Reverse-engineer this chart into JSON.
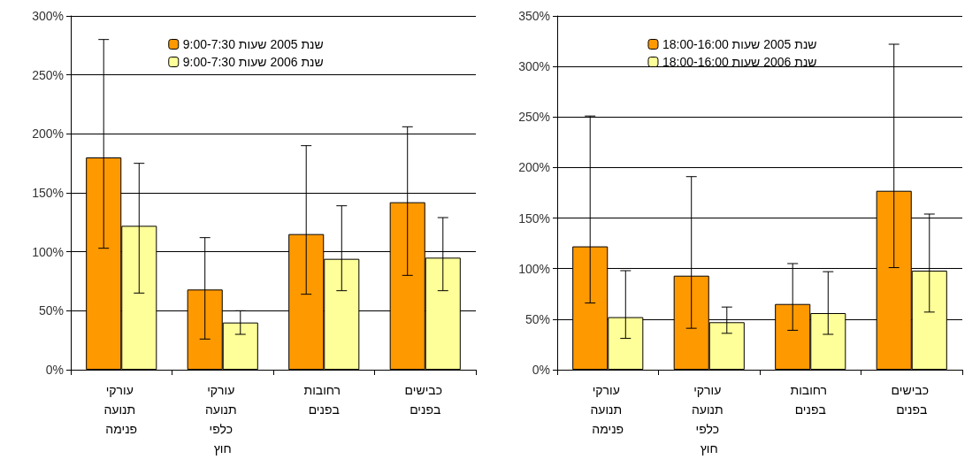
{
  "chart_data": [
    {
      "type": "bar",
      "categories": [
        "עורקי תנועה פנימה",
        "עורקי תנועה כלפי חוץ",
        "רחובות בפנים",
        "כבישים בפנים"
      ],
      "ylim": [
        0,
        300
      ],
      "yticks": [
        {
          "value": 0,
          "label": "0%"
        },
        {
          "value": 50,
          "label": "50%"
        },
        {
          "value": 100,
          "label": "100%"
        },
        {
          "value": 150,
          "label": "150%"
        },
        {
          "value": 200,
          "label": "200%"
        },
        {
          "value": 250,
          "label": "250%"
        },
        {
          "value": 300,
          "label": "300%"
        }
      ],
      "grid": "y",
      "legend": "top",
      "series": [
        {
          "name": "שנת 2005 שעות 9:00-7:30",
          "color": "#ff9900",
          "values": [
            180,
            68,
            115,
            142
          ],
          "errors": [
            [
              103,
              280
            ],
            [
              26,
              112
            ],
            [
              64,
              190
            ],
            [
              80,
              206
            ]
          ]
        },
        {
          "name": "שנת 2006 שעות 9:00-7:30",
          "color": "#ffff99",
          "values": [
            122,
            40,
            94,
            95
          ],
          "errors": [
            [
              65,
              175
            ],
            [
              30,
              50
            ],
            [
              67,
              139
            ],
            [
              67,
              129
            ]
          ]
        }
      ]
    },
    {
      "type": "bar",
      "categories": [
        "עורקי תנועה פנימה",
        "עורקי תנועה כלפי חוץ",
        "רחובות בפנים",
        "כבישים בפנים"
      ],
      "ylim": [
        0,
        350
      ],
      "yticks": [
        {
          "value": 0,
          "label": "0%"
        },
        {
          "value": 50,
          "label": "50%"
        },
        {
          "value": 100,
          "label": "100%"
        },
        {
          "value": 150,
          "label": "150%"
        },
        {
          "value": 200,
          "label": "200%"
        },
        {
          "value": 250,
          "label": "250%"
        },
        {
          "value": 300,
          "label": "300%"
        },
        {
          "value": 350,
          "label": "350%"
        }
      ],
      "grid": "y",
      "legend": "top",
      "series": [
        {
          "name": "שנת 2005 שעות 18:00-16:00",
          "color": "#ff9900",
          "values": [
            122,
            93,
            65,
            177
          ],
          "errors": [
            [
              66,
              251
            ],
            [
              41,
              191
            ],
            [
              39,
              105
            ],
            [
              101,
              322
            ]
          ]
        },
        {
          "name": "שנת 2006 שעות 18:00-16:00",
          "color": "#ffff99",
          "values": [
            52,
            47,
            56,
            98
          ],
          "errors": [
            [
              31,
              98
            ],
            [
              36,
              62
            ],
            [
              35,
              97
            ],
            [
              57,
              154
            ]
          ]
        }
      ]
    }
  ]
}
